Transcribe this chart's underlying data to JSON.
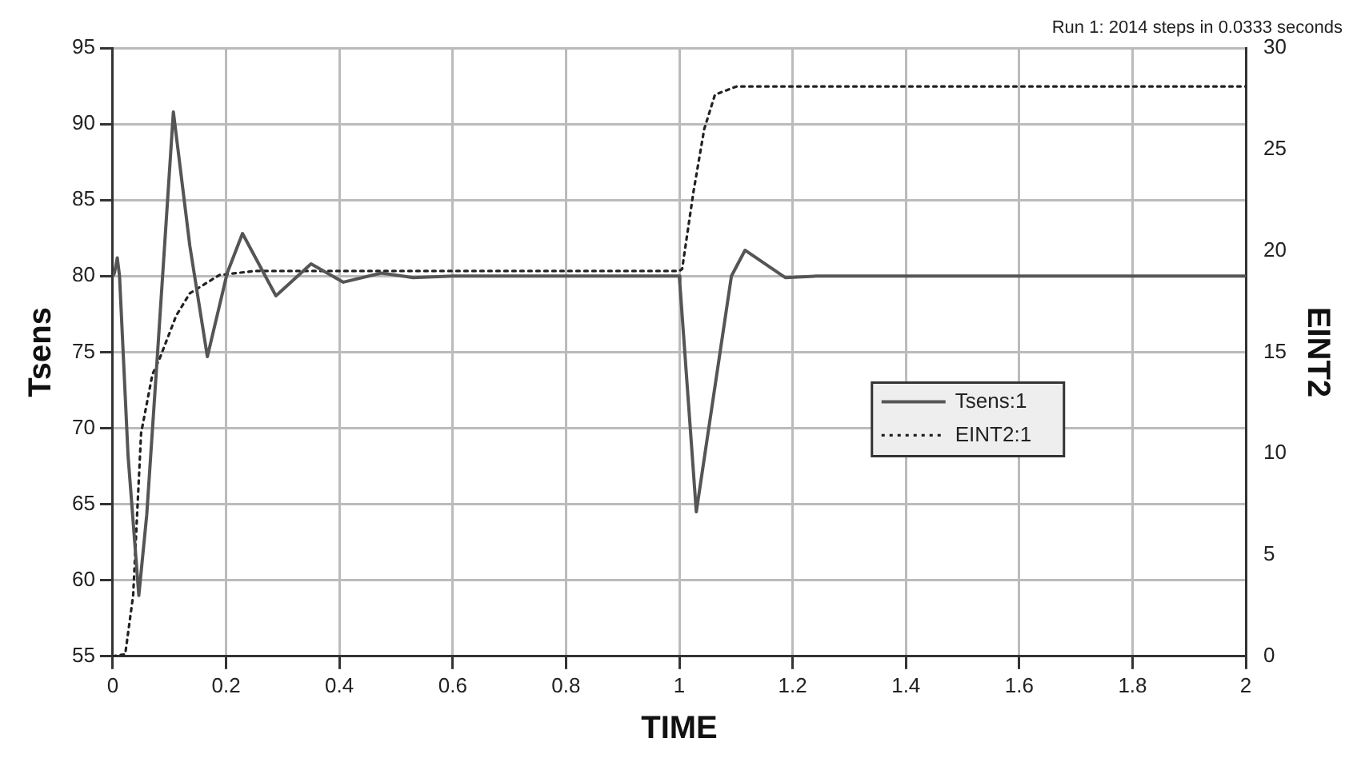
{
  "chart_data": {
    "type": "line",
    "annotations": [
      "Run 1: 2014 steps in 0.0333 seconds"
    ],
    "xlabel": "TIME",
    "ylabel": "Tsens",
    "y2label": "EINT2",
    "xlim": [
      0,
      2
    ],
    "xticks": [
      0,
      0.2,
      0.4,
      0.6,
      0.8,
      1,
      1.2,
      1.4,
      1.6,
      1.8,
      2
    ],
    "ylim": [
      55,
      95
    ],
    "yticks": [
      55,
      60,
      65,
      70,
      75,
      80,
      85,
      90,
      95
    ],
    "y2lim": [
      0,
      30
    ],
    "y2ticks": [
      0,
      5,
      10,
      15,
      20,
      25,
      30
    ],
    "grid": true,
    "legend": "right",
    "marker": "none",
    "series": [
      {
        "name": "Tsens:1",
        "color": "#555555",
        "line_style": "solid",
        "x": [
          0,
          0.003,
          0.008,
          0.012,
          0.027,
          0.046,
          0.06,
          0.079,
          0.107,
          0.136,
          0.167,
          0.202,
          0.229,
          0.288,
          0.35,
          0.407,
          0.474,
          0.53,
          0.6,
          1,
          1.001,
          1.03,
          1.092,
          1.116,
          1.187,
          1.244,
          2
        ],
        "values": [
          80,
          80.2,
          81.2,
          80,
          68.2,
          59,
          64.3,
          74.9,
          90.8,
          82,
          74.7,
          80.2,
          82.8,
          78.7,
          80.8,
          79.6,
          80.2,
          79.9,
          80,
          80,
          79.5,
          64.5,
          80,
          81.7,
          79.9,
          80,
          80
        ]
      },
      {
        "name": "EINT2:1",
        "color": "#222222",
        "line_style": "dotted",
        "axis": "y2",
        "x": [
          0,
          0.022,
          0.036,
          0.05,
          0.07,
          0.083,
          0.112,
          0.136,
          0.188,
          0.25,
          1,
          1.005,
          1.025,
          1.044,
          1.063,
          1.101,
          2
        ],
        "values": [
          0,
          0.1,
          3,
          11,
          13.9,
          14.7,
          16.8,
          17.9,
          18.8,
          19,
          19,
          19.1,
          22.9,
          26,
          27.7,
          28.1,
          28.1
        ]
      }
    ]
  }
}
